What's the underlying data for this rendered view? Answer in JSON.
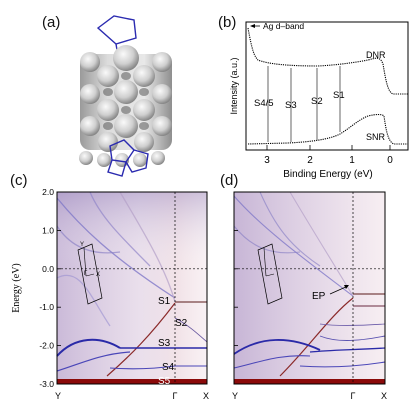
{
  "panels": {
    "a": {
      "label": "(a)"
    },
    "b": {
      "label": "(b)"
    },
    "c": {
      "label": "(c)"
    },
    "d": {
      "label": "(d)"
    }
  },
  "spectra": {
    "ylabel": "Intensity (a.u.)",
    "xlabel": "Binding Energy (eV)",
    "legend_ag": "Ag d–band",
    "curve_top_label": "DNR",
    "curve_bottom_label": "SNR",
    "xticks": [
      "3",
      "2",
      "1",
      "0"
    ],
    "states": [
      "S4/5",
      "S3",
      "S2",
      "S1"
    ]
  },
  "bands": {
    "ylabel": "Energy (eV)",
    "yticks": [
      "2.0",
      "1.0",
      "0.0",
      "-1.0",
      "-2.0",
      "-3.0"
    ],
    "xticks": [
      "Y",
      "Γ",
      "X"
    ],
    "bz_labels": {
      "y": "Y",
      "gamma": "Γ",
      "x": "X"
    },
    "c_states": [
      "S1",
      "S2",
      "S3",
      "S4",
      "S5"
    ],
    "d_annotation": "EP"
  },
  "chart_data": [
    {
      "type": "line",
      "title": "",
      "xlabel": "Binding Energy (eV)",
      "ylabel": "Intensity (a.u.)",
      "xlim": [
        3.8,
        -0.2
      ],
      "xticks": [
        3,
        2,
        1,
        0
      ],
      "series": [
        {
          "name": "DNR",
          "x": [
            3.8,
            3.5,
            3.2,
            3.0,
            2.6,
            2.2,
            1.8,
            1.4,
            1.0,
            0.8,
            0.6,
            0.4,
            0.2,
            0.05,
            -0.2
          ],
          "y": [
            1.0,
            0.62,
            0.55,
            0.53,
            0.535,
            0.54,
            0.545,
            0.55,
            0.56,
            0.57,
            0.58,
            0.6,
            0.58,
            0.42,
            0.4
          ]
        },
        {
          "name": "SNR",
          "x": [
            3.8,
            3.0,
            2.2,
            1.6,
            1.2,
            1.0,
            0.8,
            0.6,
            0.4,
            0.2,
            0.05,
            -0.2
          ],
          "y": [
            0.05,
            0.06,
            0.08,
            0.12,
            0.16,
            0.2,
            0.24,
            0.27,
            0.31,
            0.33,
            0.06,
            0.04
          ]
        }
      ],
      "annotations": [
        {
          "text": "S4/5",
          "x": 3.0
        },
        {
          "text": "S3",
          "x": 2.3
        },
        {
          "text": "S2",
          "x": 1.4
        },
        {
          "text": "S1",
          "x": 0.8
        }
      ]
    },
    {
      "type": "line",
      "title": "",
      "ylabel": "Energy (eV)",
      "ylim": [
        -3.0,
        2.0
      ],
      "yticks": [
        2.0,
        1.0,
        0.0,
        -1.0,
        -2.0,
        -3.0
      ],
      "xticks": [
        "Y",
        "Γ",
        "X"
      ]
    },
    {
      "type": "line",
      "title": "",
      "ylim": [
        -3.0,
        2.0
      ],
      "xticks": [
        "Y",
        "Γ",
        "X"
      ]
    }
  ],
  "colors": {
    "band_blue": "#2a2aa8",
    "band_red": "#8b0a0a",
    "wash_purple": "#b9a3cc",
    "wash_pink": "#e3b7c6",
    "struct_blue": "#2b2bb0"
  }
}
